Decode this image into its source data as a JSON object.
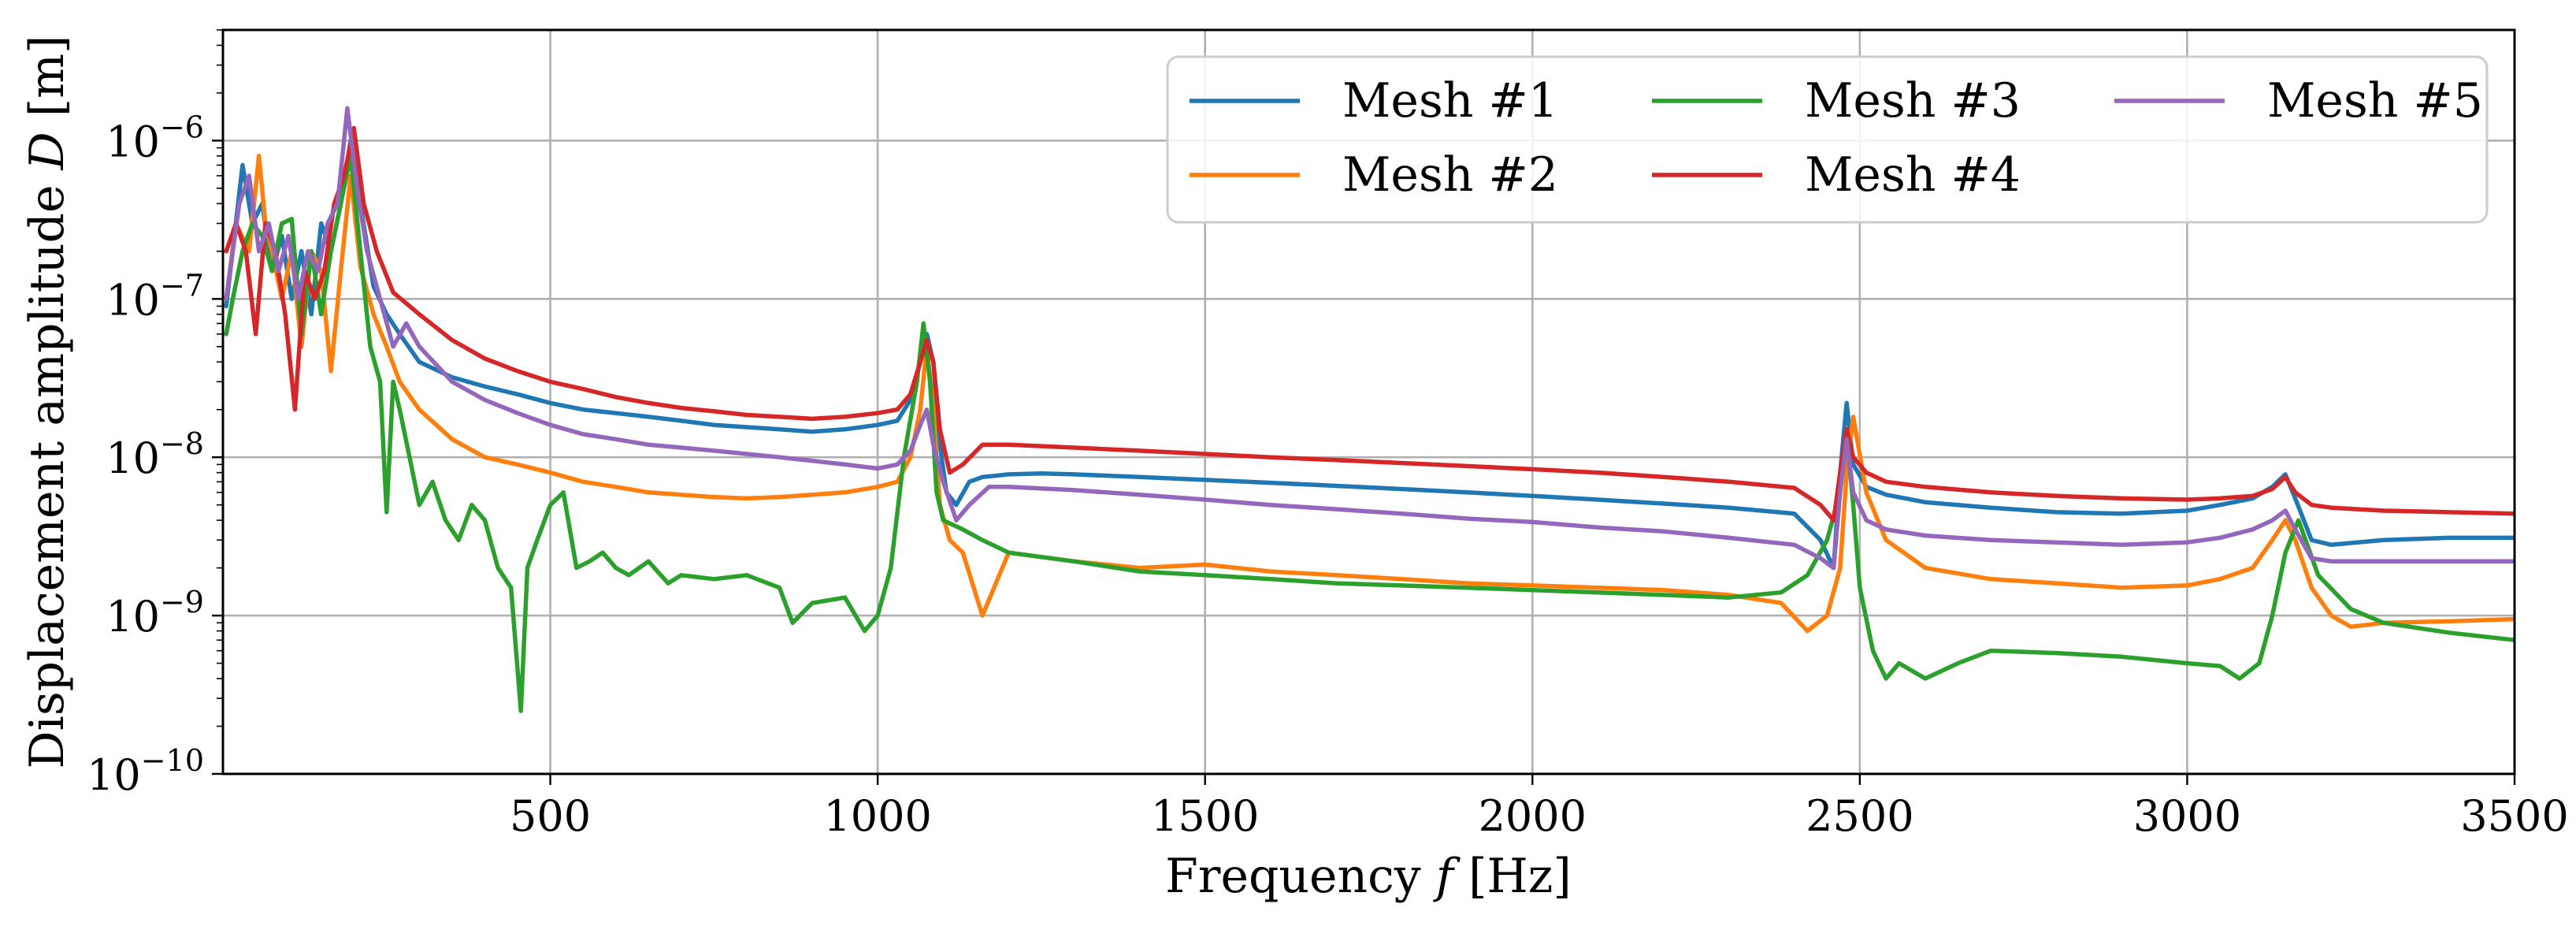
{
  "chart_data": {
    "type": "line",
    "xlabel": "Frequency",
    "xlabel_symbol": "f",
    "xlabel_unit": "[Hz]",
    "ylabel": "Displacement amplitude",
    "ylabel_symbol": "D",
    "ylabel_unit": "[m]",
    "xlim": [
      0,
      3500
    ],
    "ylim": [
      1e-10,
      5e-06
    ],
    "yscale": "log",
    "grid": true,
    "legend_position": "upper-right",
    "legend_columns": 3,
    "x_ticks": [
      {
        "value": 500,
        "label": "500"
      },
      {
        "value": 1000,
        "label": "1000"
      },
      {
        "value": 1500,
        "label": "1500"
      },
      {
        "value": 2000,
        "label": "2000"
      },
      {
        "value": 2500,
        "label": "2500"
      },
      {
        "value": 3000,
        "label": "3000"
      },
      {
        "value": 3500,
        "label": "3500"
      }
    ],
    "y_ticks": [
      {
        "value": 1e-10,
        "base": "10",
        "exp": "−10"
      },
      {
        "value": 1e-09,
        "base": "10",
        "exp": "−9"
      },
      {
        "value": 1e-08,
        "base": "10",
        "exp": "−8"
      },
      {
        "value": 1e-07,
        "base": "10",
        "exp": "−7"
      },
      {
        "value": 1e-06,
        "base": "10",
        "exp": "−6"
      }
    ],
    "series": [
      {
        "name": "Mesh #1",
        "color": "#1f77b4",
        "x": [
          5,
          30,
          45,
          60,
          75,
          90,
          105,
          120,
          135,
          150,
          165,
          180,
          195,
          210,
          230,
          250,
          270,
          300,
          350,
          400,
          450,
          500,
          550,
          600,
          650,
          700,
          750,
          800,
          850,
          900,
          950,
          1000,
          1030,
          1050,
          1065,
          1075,
          1085,
          1095,
          1105,
          1120,
          1140,
          1160,
          1200,
          1250,
          1300,
          1400,
          1500,
          1600,
          1700,
          1800,
          1900,
          2000,
          2100,
          2200,
          2300,
          2400,
          2440,
          2460,
          2470,
          2480,
          2490,
          2510,
          2540,
          2600,
          2700,
          2800,
          2900,
          3000,
          3050,
          3100,
          3130,
          3150,
          3165,
          3190,
          3220,
          3300,
          3400,
          3500
        ],
        "y": [
          9e-08,
          7e-07,
          3e-07,
          4e-07,
          1.5e-07,
          2.5e-07,
          1e-07,
          2e-07,
          8e-08,
          3e-07,
          2e-07,
          4e-07,
          1e-06,
          4e-07,
          1.2e-07,
          8e-08,
          6e-08,
          4e-08,
          3.2e-08,
          2.8e-08,
          2.5e-08,
          2.2e-08,
          2e-08,
          1.9e-08,
          1.8e-08,
          1.7e-08,
          1.6e-08,
          1.55e-08,
          1.5e-08,
          1.45e-08,
          1.5e-08,
          1.6e-08,
          1.7e-08,
          2.3e-08,
          4e-08,
          6e-08,
          4e-08,
          1.2e-08,
          6e-09,
          5e-09,
          7e-09,
          7.5e-09,
          7.8e-09,
          7.9e-09,
          7.8e-09,
          7.5e-09,
          7.2e-09,
          6.9e-09,
          6.6e-09,
          6.3e-09,
          6e-09,
          5.7e-09,
          5.4e-09,
          5.1e-09,
          4.8e-09,
          4.4e-09,
          3e-09,
          2e-09,
          8e-09,
          2.2e-08,
          9e-09,
          6.5e-09,
          5.8e-09,
          5.2e-09,
          4.8e-09,
          4.5e-09,
          4.4e-09,
          4.6e-09,
          5e-09,
          5.5e-09,
          6.5e-09,
          7.8e-09,
          5.5e-09,
          3e-09,
          2.8e-09,
          3e-09,
          3.1e-09,
          3.1e-09
        ]
      },
      {
        "name": "Mesh #2",
        "color": "#ff7f0e",
        "x": [
          5,
          20,
          40,
          55,
          65,
          75,
          90,
          105,
          120,
          135,
          150,
          165,
          180,
          195,
          210,
          230,
          250,
          270,
          300,
          350,
          400,
          450,
          500,
          550,
          600,
          650,
          700,
          750,
          800,
          850,
          900,
          950,
          1000,
          1030,
          1050,
          1065,
          1075,
          1085,
          1095,
          1110,
          1130,
          1160,
          1200,
          1300,
          1400,
          1500,
          1600,
          1700,
          1800,
          1900,
          2000,
          2100,
          2200,
          2300,
          2380,
          2420,
          2450,
          2470,
          2480,
          2490,
          2510,
          2540,
          2600,
          2700,
          2800,
          2900,
          3000,
          3050,
          3100,
          3130,
          3150,
          3165,
          3190,
          3220,
          3250,
          3300,
          3400,
          3500
        ],
        "y": [
          1e-07,
          3e-07,
          2e-07,
          8e-07,
          3e-07,
          2e-07,
          1e-07,
          2e-07,
          5e-08,
          2e-07,
          1.5e-07,
          3.5e-08,
          1.5e-07,
          6e-07,
          1.6e-07,
          8e-08,
          5e-08,
          3e-08,
          2e-08,
          1.3e-08,
          1e-08,
          9e-09,
          8e-09,
          7e-09,
          6.5e-09,
          6e-09,
          5.8e-09,
          5.6e-09,
          5.5e-09,
          5.6e-09,
          5.8e-09,
          6e-09,
          6.5e-09,
          7e-09,
          1e-08,
          2e-08,
          5e-08,
          2e-08,
          5e-09,
          3e-09,
          2.5e-09,
          1e-09,
          2.5e-09,
          2.2e-09,
          2e-09,
          2.1e-09,
          1.9e-09,
          1.8e-09,
          1.7e-09,
          1.6e-09,
          1.55e-09,
          1.5e-09,
          1.45e-09,
          1.35e-09,
          1.2e-09,
          8e-10,
          1e-09,
          2e-09,
          8e-09,
          1.8e-08,
          6e-09,
          3e-09,
          2e-09,
          1.7e-09,
          1.6e-09,
          1.5e-09,
          1.55e-09,
          1.7e-09,
          2e-09,
          3e-09,
          4e-09,
          3e-09,
          1.5e-09,
          1e-09,
          8.5e-10,
          9e-10,
          9.2e-10,
          9.5e-10
        ]
      },
      {
        "name": "Mesh #3",
        "color": "#2ca02c",
        "x": [
          5,
          15,
          30,
          45,
          60,
          75,
          90,
          105,
          120,
          135,
          150,
          165,
          180,
          195,
          210,
          225,
          240,
          250,
          260,
          270,
          285,
          300,
          320,
          340,
          360,
          380,
          400,
          420,
          440,
          455,
          465,
          480,
          500,
          520,
          540,
          560,
          580,
          600,
          620,
          650,
          680,
          700,
          750,
          800,
          850,
          870,
          900,
          950,
          980,
          1000,
          1020,
          1040,
          1060,
          1070,
          1080,
          1090,
          1100,
          1130,
          1160,
          1200,
          1300,
          1400,
          1500,
          1600,
          1700,
          1800,
          1900,
          2000,
          2100,
          2200,
          2300,
          2380,
          2420,
          2450,
          2470,
          2480,
          2490,
          2500,
          2520,
          2540,
          2560,
          2600,
          2650,
          2700,
          2800,
          2900,
          3000,
          3050,
          3080,
          3110,
          3130,
          3150,
          3170,
          3200,
          3250,
          3300,
          3400,
          3500
        ],
        "y": [
          6e-08,
          1e-07,
          2e-07,
          3e-07,
          2.5e-07,
          1.5e-07,
          3e-07,
          3.2e-07,
          6e-08,
          2e-07,
          8e-08,
          2e-07,
          4e-07,
          8e-07,
          2e-07,
          5e-08,
          3e-08,
          4.5e-09,
          3e-08,
          2e-08,
          1e-08,
          5e-09,
          7e-09,
          4e-09,
          3e-09,
          5e-09,
          4e-09,
          2e-09,
          1.5e-09,
          2.5e-10,
          2e-09,
          3e-09,
          5e-09,
          6e-09,
          2e-09,
          2.2e-09,
          2.5e-09,
          2e-09,
          1.8e-09,
          2.2e-09,
          1.6e-09,
          1.8e-09,
          1.7e-09,
          1.8e-09,
          1.5e-09,
          9e-10,
          1.2e-09,
          1.3e-09,
          8e-10,
          1e-09,
          2e-09,
          1e-08,
          3e-08,
          7e-08,
          3e-08,
          6e-09,
          4e-09,
          3.5e-09,
          3e-09,
          2.5e-09,
          2.2e-09,
          1.9e-09,
          1.8e-09,
          1.7e-09,
          1.6e-09,
          1.55e-09,
          1.5e-09,
          1.45e-09,
          1.4e-09,
          1.35e-09,
          1.3e-09,
          1.4e-09,
          1.8e-09,
          3e-09,
          6e-09,
          1.4e-08,
          5e-09,
          1.5e-09,
          6e-10,
          4e-10,
          5e-10,
          4e-10,
          5e-10,
          6e-10,
          5.8e-10,
          5.5e-10,
          5e-10,
          4.8e-10,
          4e-10,
          5e-10,
          1e-09,
          2.5e-09,
          4e-09,
          1.8e-09,
          1.1e-09,
          9e-10,
          7.8e-10,
          7e-10
        ]
      },
      {
        "name": "Mesh #4",
        "color": "#d62728",
        "x": [
          5,
          20,
          35,
          50,
          65,
          80,
          95,
          110,
          125,
          140,
          155,
          170,
          185,
          200,
          215,
          235,
          260,
          300,
          350,
          400,
          450,
          500,
          550,
          600,
          650,
          700,
          750,
          800,
          850,
          900,
          950,
          1000,
          1030,
          1050,
          1065,
          1075,
          1085,
          1095,
          1110,
          1130,
          1160,
          1200,
          1300,
          1400,
          1500,
          1600,
          1700,
          1800,
          1900,
          2000,
          2100,
          2200,
          2300,
          2400,
          2440,
          2460,
          2470,
          2480,
          2490,
          2510,
          2540,
          2600,
          2700,
          2800,
          2900,
          3000,
          3050,
          3100,
          3130,
          3150,
          3165,
          3190,
          3220,
          3300,
          3400,
          3500
        ],
        "y": [
          2e-07,
          3e-07,
          2e-07,
          6e-08,
          3e-07,
          2e-07,
          8e-08,
          2e-08,
          1.5e-07,
          1e-07,
          1.5e-07,
          4e-07,
          6e-07,
          1.2e-06,
          4e-07,
          2e-07,
          1.1e-07,
          8e-08,
          5.5e-08,
          4.2e-08,
          3.5e-08,
          3e-08,
          2.7e-08,
          2.4e-08,
          2.2e-08,
          2.05e-08,
          1.95e-08,
          1.85e-08,
          1.8e-08,
          1.75e-08,
          1.8e-08,
          1.9e-08,
          2e-08,
          2.5e-08,
          4e-08,
          5.5e-08,
          4e-08,
          1.5e-08,
          8e-09,
          9e-09,
          1.2e-08,
          1.2e-08,
          1.15e-08,
          1.1e-08,
          1.05e-08,
          1e-08,
          9.6e-09,
          9.2e-09,
          8.8e-09,
          8.4e-09,
          8e-09,
          7.5e-09,
          7e-09,
          6.4e-09,
          5e-09,
          4e-09,
          8e-09,
          1.5e-08,
          1e-08,
          8e-09,
          7e-09,
          6.5e-09,
          6e-09,
          5.7e-09,
          5.5e-09,
          5.4e-09,
          5.5e-09,
          5.7e-09,
          6.3e-09,
          7.5e-09,
          6e-09,
          5e-09,
          4.8e-09,
          4.6e-09,
          4.5e-09,
          4.4e-09
        ]
      },
      {
        "name": "Mesh #5",
        "color": "#9467bd",
        "x": [
          5,
          25,
          40,
          55,
          70,
          85,
          100,
          115,
          130,
          145,
          160,
          175,
          190,
          205,
          220,
          240,
          260,
          280,
          300,
          350,
          400,
          450,
          500,
          550,
          600,
          650,
          700,
          750,
          800,
          850,
          900,
          950,
          1000,
          1030,
          1050,
          1065,
          1075,
          1085,
          1100,
          1120,
          1140,
          1170,
          1200,
          1300,
          1400,
          1500,
          1600,
          1700,
          1800,
          1900,
          2000,
          2100,
          2200,
          2300,
          2400,
          2440,
          2460,
          2470,
          2480,
          2490,
          2510,
          2540,
          2600,
          2700,
          2800,
          2900,
          3000,
          3050,
          3100,
          3130,
          3150,
          3165,
          3190,
          3220,
          3300,
          3400,
          3500
        ],
        "y": [
          1e-07,
          4e-07,
          6e-07,
          2e-07,
          3e-07,
          1.5e-07,
          2.5e-07,
          1e-07,
          2e-07,
          1.5e-07,
          3e-07,
          4e-07,
          1.6e-06,
          5e-07,
          2e-07,
          1e-07,
          5e-08,
          7e-08,
          5e-08,
          3e-08,
          2.3e-08,
          1.9e-08,
          1.6e-08,
          1.4e-08,
          1.3e-08,
          1.2e-08,
          1.15e-08,
          1.1e-08,
          1.05e-08,
          1e-08,
          9.5e-09,
          9e-09,
          8.5e-09,
          9e-09,
          1.1e-08,
          1.6e-08,
          2e-08,
          1.2e-08,
          7e-09,
          4e-09,
          5e-09,
          6.5e-09,
          6.5e-09,
          6.2e-09,
          5.8e-09,
          5.4e-09,
          5e-09,
          4.7e-09,
          4.4e-09,
          4.1e-09,
          3.9e-09,
          3.6e-09,
          3.4e-09,
          3.1e-09,
          2.8e-09,
          2.3e-09,
          2e-09,
          6e-09,
          1.3e-08,
          6e-09,
          4e-09,
          3.5e-09,
          3.2e-09,
          3e-09,
          2.9e-09,
          2.8e-09,
          2.9e-09,
          3.1e-09,
          3.5e-09,
          4e-09,
          4.6e-09,
          3.5e-09,
          2.3e-09,
          2.2e-09,
          2.2e-09,
          2.2e-09,
          2.2e-09
        ]
      }
    ]
  }
}
